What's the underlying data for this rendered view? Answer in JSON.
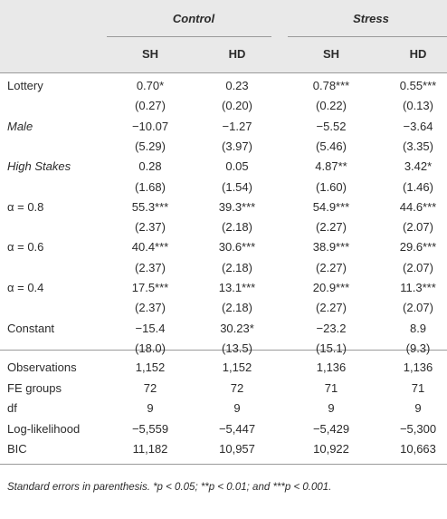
{
  "table": {
    "groups": [
      "Control",
      "Stress"
    ],
    "columns": [
      "SH",
      "HD",
      "SH",
      "HD"
    ],
    "rows": [
      {
        "label": "Lottery",
        "cells": [
          "0.70*",
          "0.23",
          "0.78***",
          "0.55***"
        ]
      },
      {
        "cells": [
          "(0.27)",
          "(0.20)",
          "(0.22)",
          "(0.13)"
        ]
      },
      {
        "label": "Male",
        "cells": [
          "−10.07",
          "−1.27",
          "−5.52",
          "−3.64"
        ]
      },
      {
        "cells": [
          "(5.29)",
          "(3.97)",
          "(5.46)",
          "(3.35)"
        ]
      },
      {
        "label": "High Stakes",
        "cells": [
          "0.28",
          "0.05",
          "4.87**",
          "3.42*"
        ]
      },
      {
        "cells": [
          "(1.68)",
          "(1.54)",
          "(1.60)",
          "(1.46)"
        ]
      },
      {
        "label": "α = 0.8",
        "cells": [
          "55.3***",
          "39.3***",
          "54.9***",
          "44.6***"
        ]
      },
      {
        "cells": [
          "(2.37)",
          "(2.18)",
          "(2.27)",
          "(2.07)"
        ]
      },
      {
        "label": "α = 0.6",
        "cells": [
          "40.4***",
          "30.6***",
          "38.9***",
          "29.6***"
        ]
      },
      {
        "cells": [
          "(2.37)",
          "(2.18)",
          "(2.27)",
          "(2.07)"
        ]
      },
      {
        "label": "α = 0.4",
        "cells": [
          "17.5***",
          "13.1***",
          "20.9***",
          "11.3***"
        ]
      },
      {
        "cells": [
          "(2.37)",
          "(2.18)",
          "(2.27)",
          "(2.07)"
        ]
      },
      {
        "label": "Constant",
        "cells": [
          "−15.4",
          "30.23*",
          "−23.2",
          "8.9"
        ]
      },
      {
        "cells": [
          "(18.0)",
          "(13.5)",
          "(15.1)",
          "(9.3)"
        ]
      }
    ],
    "stats": [
      {
        "label": "Observations",
        "cells": [
          "1,152",
          "1,152",
          "1,136",
          "1,136"
        ]
      },
      {
        "label": "FE groups",
        "cells": [
          "72",
          "72",
          "71",
          "71"
        ]
      },
      {
        "label": "df",
        "cells": [
          "9",
          "9",
          "9",
          "9"
        ]
      },
      {
        "label": "Log-likelihood",
        "cells": [
          "−5,559",
          "−5,447",
          "−5,429",
          "−5,300"
        ]
      },
      {
        "label": "BIC",
        "cells": [
          "11,182",
          "10,957",
          "10,922",
          "10,663"
        ]
      }
    ],
    "footnote": "Standard errors in parenthesis. *p < 0.05; **p < 0.01; and ***p < 0.001."
  }
}
